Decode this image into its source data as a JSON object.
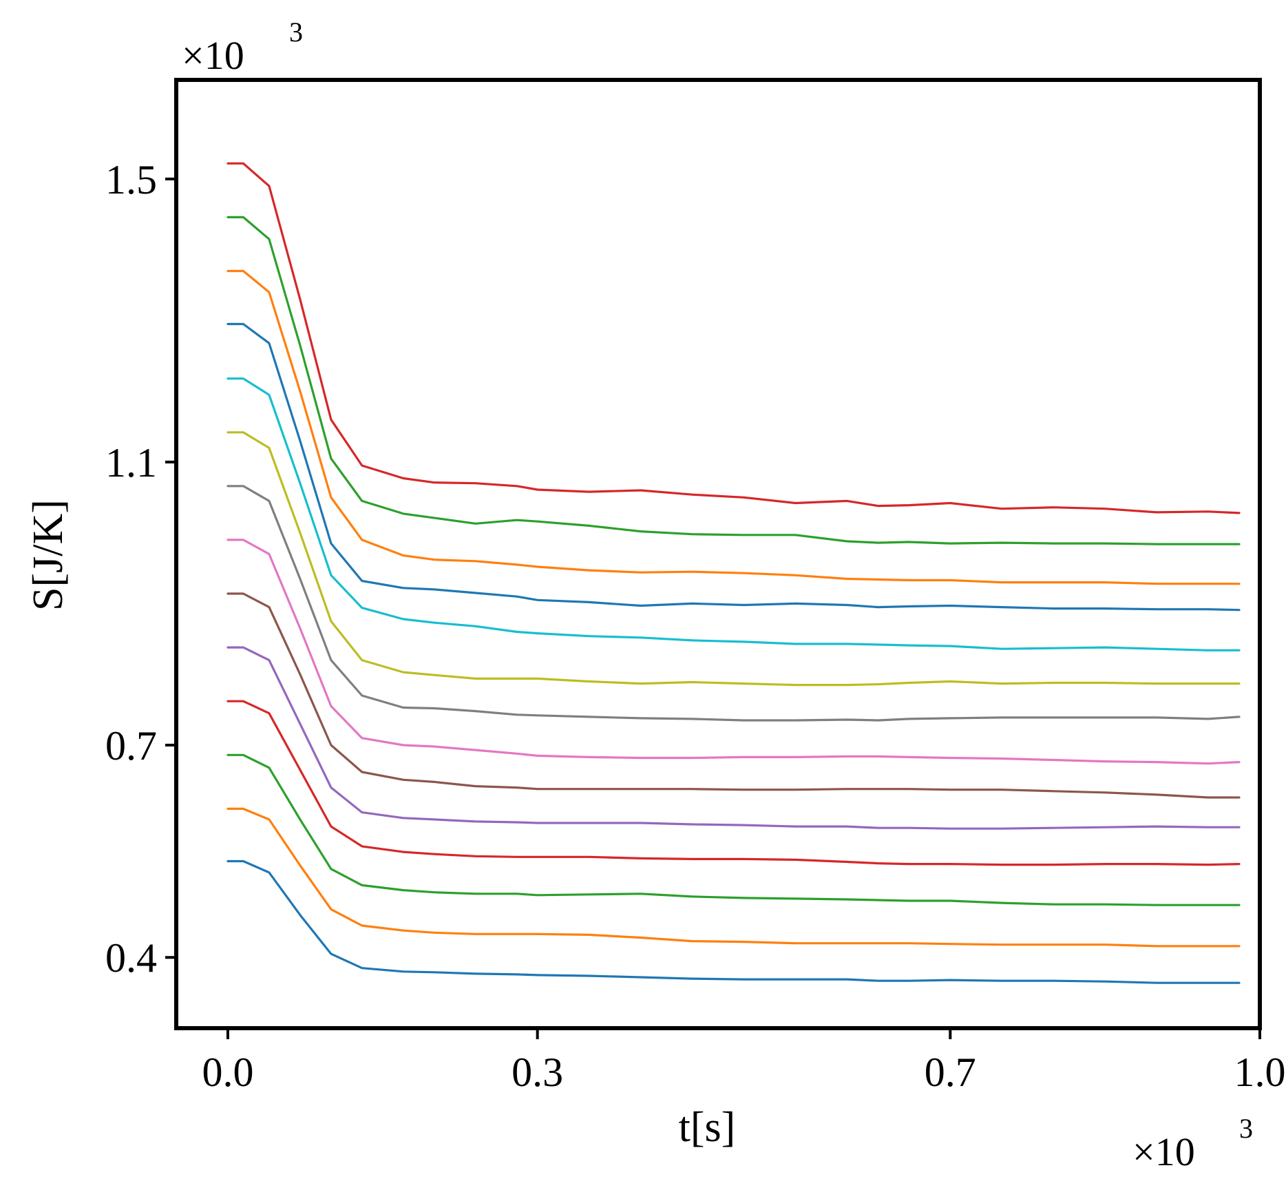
{
  "chart_data": {
    "type": "line",
    "xlabel": "t[s]",
    "ylabel": "S[J/K]",
    "x_multiplier": "×10",
    "x_multiplier_exp": "3",
    "y_multiplier": "×10",
    "y_multiplier_exp": "3",
    "xlim": [
      -0.05,
      1.0
    ],
    "ylim": [
      0.3,
      1.64
    ],
    "x_ticks": [
      {
        "value": 0.0,
        "label": "0.0"
      },
      {
        "value": 0.3,
        "label": "0.3"
      },
      {
        "value": 0.7,
        "label": "0.7"
      },
      {
        "value": 1.0,
        "label": "1.0"
      }
    ],
    "y_ticks": [
      {
        "value": 0.4,
        "label": "0.4"
      },
      {
        "value": 0.7,
        "label": "0.7"
      },
      {
        "value": 1.1,
        "label": "1.1"
      },
      {
        "value": 1.5,
        "label": "1.5"
      }
    ],
    "grid": false,
    "legend": "none",
    "x": [
      0.0,
      0.015,
      0.04,
      0.07,
      0.1,
      0.13,
      0.17,
      0.2,
      0.24,
      0.28,
      0.3,
      0.35,
      0.4,
      0.45,
      0.5,
      0.55,
      0.6,
      0.63,
      0.66,
      0.7,
      0.75,
      0.8,
      0.85,
      0.9,
      0.95,
      0.98
    ],
    "series": [
      {
        "color": "#d62728",
        "values": [
          1.522,
          1.522,
          1.49,
          1.33,
          1.16,
          1.095,
          1.077,
          1.071,
          1.07,
          1.066,
          1.061,
          1.058,
          1.06,
          1.054,
          1.05,
          1.042,
          1.045,
          1.038,
          1.039,
          1.042,
          1.034,
          1.036,
          1.034,
          1.029,
          1.03,
          1.028
        ]
      },
      {
        "color": "#2ca02c",
        "values": [
          1.446,
          1.446,
          1.415,
          1.265,
          1.105,
          1.045,
          1.027,
          1.021,
          1.013,
          1.018,
          1.016,
          1.01,
          1.002,
          0.998,
          0.997,
          0.997,
          0.988,
          0.986,
          0.987,
          0.985,
          0.986,
          0.985,
          0.985,
          0.984,
          0.984,
          0.984
        ]
      },
      {
        "color": "#ff7f0e",
        "values": [
          1.37,
          1.37,
          1.34,
          1.2,
          1.05,
          0.99,
          0.968,
          0.962,
          0.96,
          0.955,
          0.952,
          0.947,
          0.944,
          0.945,
          0.943,
          0.94,
          0.935,
          0.934,
          0.933,
          0.933,
          0.93,
          0.93,
          0.93,
          0.928,
          0.928,
          0.928
        ]
      },
      {
        "color": "#1f77b4",
        "values": [
          1.295,
          1.295,
          1.268,
          1.13,
          0.985,
          0.932,
          0.922,
          0.92,
          0.915,
          0.91,
          0.905,
          0.902,
          0.897,
          0.9,
          0.898,
          0.9,
          0.898,
          0.895,
          0.896,
          0.897,
          0.895,
          0.893,
          0.893,
          0.892,
          0.892,
          0.891
        ]
      },
      {
        "color": "#17becf",
        "values": [
          1.218,
          1.218,
          1.195,
          1.07,
          0.94,
          0.894,
          0.878,
          0.873,
          0.868,
          0.86,
          0.858,
          0.854,
          0.852,
          0.848,
          0.846,
          0.843,
          0.843,
          0.842,
          0.841,
          0.84,
          0.836,
          0.837,
          0.838,
          0.836,
          0.834,
          0.834
        ]
      },
      {
        "color": "#bcbd22",
        "values": [
          1.142,
          1.142,
          1.12,
          1.0,
          0.875,
          0.82,
          0.803,
          0.799,
          0.794,
          0.794,
          0.794,
          0.79,
          0.787,
          0.789,
          0.787,
          0.785,
          0.785,
          0.786,
          0.788,
          0.79,
          0.787,
          0.788,
          0.788,
          0.787,
          0.787,
          0.787
        ]
      },
      {
        "color": "#7f7f7f",
        "values": [
          1.066,
          1.066,
          1.045,
          0.935,
          0.82,
          0.77,
          0.753,
          0.752,
          0.748,
          0.743,
          0.742,
          0.74,
          0.738,
          0.737,
          0.735,
          0.735,
          0.736,
          0.735,
          0.737,
          0.738,
          0.739,
          0.739,
          0.739,
          0.739,
          0.737,
          0.74
        ]
      },
      {
        "color": "#e377c2",
        "values": [
          0.99,
          0.99,
          0.97,
          0.865,
          0.755,
          0.71,
          0.7,
          0.698,
          0.693,
          0.688,
          0.685,
          0.683,
          0.682,
          0.682,
          0.683,
          0.683,
          0.684,
          0.684,
          0.683,
          0.682,
          0.681,
          0.679,
          0.677,
          0.676,
          0.674,
          0.676
        ]
      },
      {
        "color": "#8c564b",
        "values": [
          0.914,
          0.914,
          0.895,
          0.8,
          0.7,
          0.662,
          0.651,
          0.648,
          0.642,
          0.64,
          0.638,
          0.638,
          0.638,
          0.638,
          0.637,
          0.637,
          0.638,
          0.638,
          0.638,
          0.637,
          0.637,
          0.635,
          0.633,
          0.63,
          0.626,
          0.626
        ]
      },
      {
        "color": "#9467bd",
        "values": [
          0.838,
          0.838,
          0.82,
          0.73,
          0.64,
          0.605,
          0.597,
          0.595,
          0.592,
          0.591,
          0.59,
          0.59,
          0.59,
          0.588,
          0.587,
          0.585,
          0.585,
          0.583,
          0.583,
          0.582,
          0.582,
          0.583,
          0.584,
          0.585,
          0.584,
          0.584
        ]
      },
      {
        "color": "#d62728",
        "values": [
          0.762,
          0.762,
          0.745,
          0.665,
          0.585,
          0.557,
          0.549,
          0.546,
          0.543,
          0.542,
          0.542,
          0.542,
          0.54,
          0.539,
          0.539,
          0.538,
          0.535,
          0.533,
          0.532,
          0.532,
          0.531,
          0.531,
          0.532,
          0.532,
          0.531,
          0.532
        ]
      },
      {
        "color": "#2ca02c",
        "values": [
          0.686,
          0.686,
          0.668,
          0.595,
          0.525,
          0.502,
          0.495,
          0.492,
          0.49,
          0.49,
          0.488,
          0.489,
          0.49,
          0.486,
          0.484,
          0.483,
          0.482,
          0.481,
          0.48,
          0.48,
          0.477,
          0.475,
          0.475,
          0.474,
          0.474,
          0.474
        ]
      },
      {
        "color": "#ff7f0e",
        "values": [
          0.61,
          0.61,
          0.595,
          0.53,
          0.468,
          0.445,
          0.438,
          0.435,
          0.433,
          0.433,
          0.433,
          0.432,
          0.428,
          0.423,
          0.422,
          0.42,
          0.42,
          0.42,
          0.42,
          0.419,
          0.418,
          0.418,
          0.418,
          0.416,
          0.416,
          0.416
        ]
      },
      {
        "color": "#1f77b4",
        "values": [
          0.536,
          0.536,
          0.52,
          0.46,
          0.405,
          0.385,
          0.38,
          0.379,
          0.377,
          0.376,
          0.375,
          0.374,
          0.372,
          0.37,
          0.369,
          0.369,
          0.369,
          0.367,
          0.367,
          0.368,
          0.367,
          0.367,
          0.366,
          0.364,
          0.364,
          0.364
        ]
      }
    ]
  }
}
